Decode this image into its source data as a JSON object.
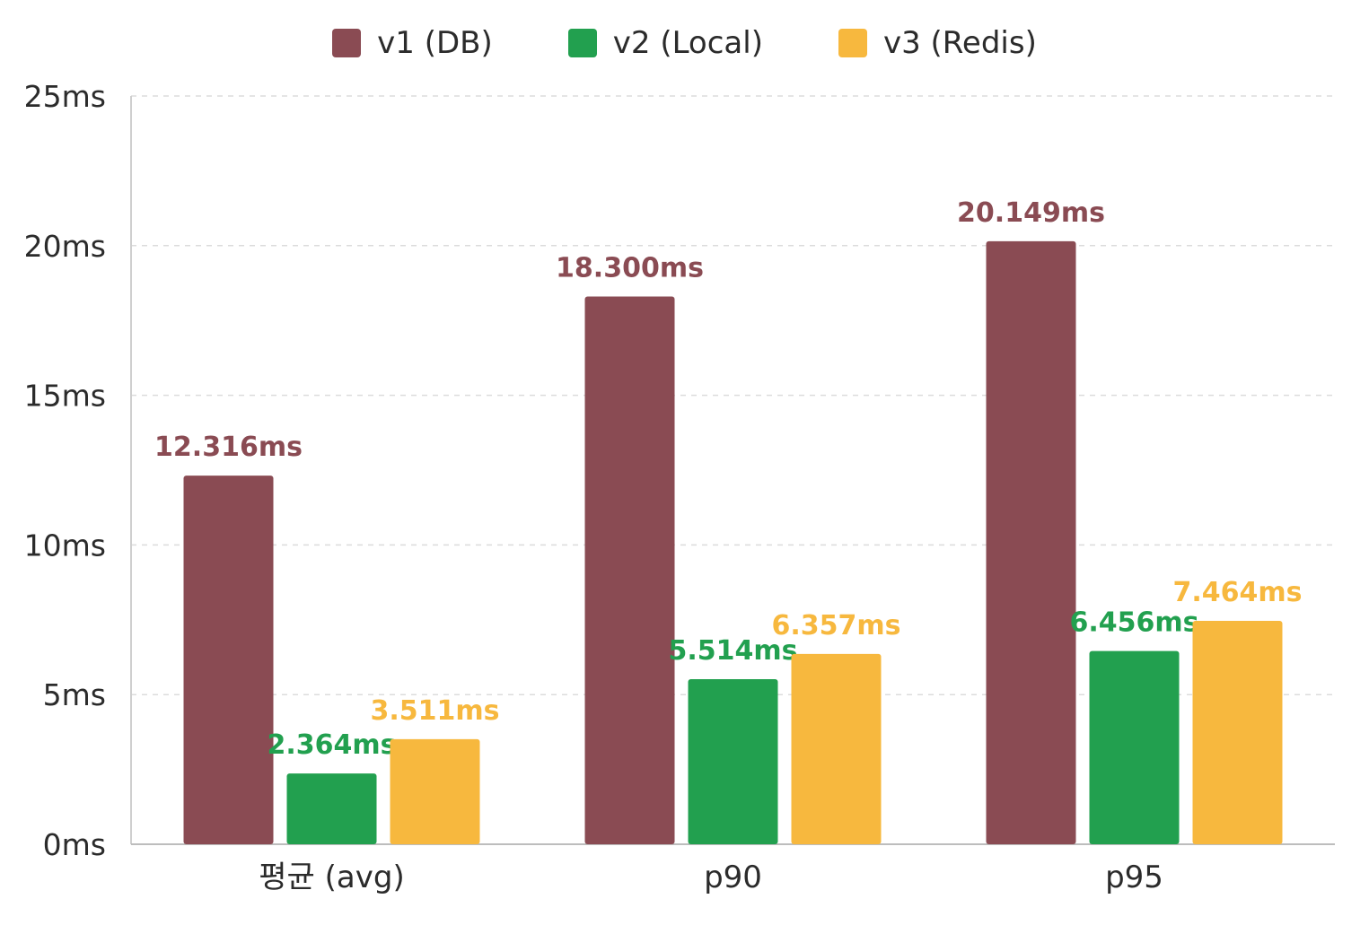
{
  "chart_data": {
    "type": "bar",
    "categories": [
      "평균 (avg)",
      "p90",
      "p95"
    ],
    "series": [
      {
        "name": "v1 (DB)",
        "color": "#8a4b53",
        "values": [
          12.316,
          18.3,
          20.149
        ],
        "labels": [
          "12.316ms",
          "18.300ms",
          "20.149ms"
        ]
      },
      {
        "name": "v2 (Local)",
        "color": "#22a04f",
        "values": [
          2.364,
          5.514,
          6.456
        ],
        "labels": [
          "2.364ms",
          "5.514ms",
          "6.456ms"
        ]
      },
      {
        "name": "v3 (Redis)",
        "color": "#f7b83e",
        "values": [
          3.511,
          6.357,
          7.464
        ],
        "labels": [
          "3.511ms",
          "6.357ms",
          "7.464ms"
        ]
      }
    ],
    "yticks": [
      0,
      5,
      10,
      15,
      20,
      25
    ],
    "ytick_labels": [
      "0ms",
      "5ms",
      "10ms",
      "15ms",
      "20ms",
      "25ms"
    ],
    "ylim": [
      0,
      25
    ],
    "grid": true,
    "legend_position": "top-center"
  }
}
